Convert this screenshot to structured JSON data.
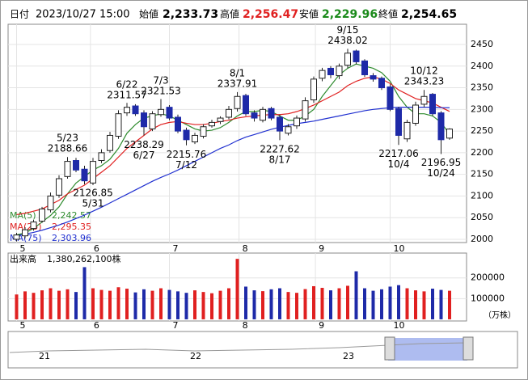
{
  "header": {
    "date_label": "日付",
    "date": "2023/10/27 15:00",
    "open_label": "始値",
    "open": "2,233.73",
    "high_label": "高値",
    "high": "2,256.47",
    "low_label": "安値",
    "low": "2,229.96",
    "close_label": "終値",
    "close": "2,254.65"
  },
  "chart_data": [
    {
      "type": "candlestick",
      "xlim": [
        -1,
        53
      ],
      "xticks": [
        {
          "value": 0,
          "label": "5"
        },
        {
          "value": 8.7,
          "label": "6"
        },
        {
          "value": 18,
          "label": "7"
        },
        {
          "value": 26.2,
          "label": "8"
        },
        {
          "value": 35.2,
          "label": "9"
        },
        {
          "value": 44,
          "label": "10"
        }
      ],
      "ylim": [
        1992.5,
        2496.7
      ],
      "yticks": [
        2000,
        2050,
        2100,
        2150,
        2200,
        2250,
        2300,
        2350,
        2400,
        2450
      ],
      "grid": true,
      "up_color": "#ffffff",
      "down_color": "#1e2aa8",
      "open": [
        2000,
        2008,
        2025,
        2042,
        2068,
        2102,
        2145,
        2182,
        2162,
        2130,
        2182,
        2205,
        2238,
        2292,
        2308,
        2292,
        2255,
        2288,
        2305,
        2282,
        2252,
        2225,
        2238,
        2262,
        2272,
        2282,
        2302,
        2332,
        2292,
        2275,
        2302,
        2282,
        2245,
        2262,
        2278,
        2322,
        2372,
        2395,
        2378,
        2402,
        2435,
        2412,
        2378,
        2372,
        2352,
        2302,
        2232,
        2268,
        2312,
        2335,
        2292,
        2233.73
      ],
      "high": [
        2015,
        2028,
        2045,
        2075,
        2108,
        2148,
        2190,
        2188,
        2170,
        2188,
        2208,
        2248,
        2298,
        2315,
        2312,
        2298,
        2296,
        2324,
        2310,
        2288,
        2258,
        2246,
        2266,
        2276,
        2284,
        2308,
        2340,
        2336,
        2298,
        2306,
        2306,
        2288,
        2266,
        2286,
        2328,
        2376,
        2396,
        2400,
        2406,
        2440,
        2438,
        2416,
        2384,
        2376,
        2358,
        2306,
        2276,
        2318,
        2345,
        2338,
        2296,
        2256.47
      ],
      "low": [
        1995,
        2002,
        2020,
        2038,
        2062,
        2096,
        2140,
        2155,
        2127,
        2125,
        2176,
        2200,
        2232,
        2285,
        2285,
        2240,
        2250,
        2283,
        2275,
        2245,
        2217,
        2220,
        2233,
        2258,
        2266,
        2277,
        2295,
        2285,
        2272,
        2270,
        2275,
        2229,
        2240,
        2255,
        2272,
        2315,
        2365,
        2372,
        2370,
        2395,
        2404,
        2375,
        2364,
        2345,
        2296,
        2218,
        2225,
        2262,
        2305,
        2285,
        2197,
        2229.96
      ],
      "close": [
        2010,
        2022,
        2040,
        2070,
        2100,
        2140,
        2180,
        2160,
        2135,
        2180,
        2200,
        2240,
        2290,
        2305,
        2290,
        2260,
        2290,
        2300,
        2280,
        2250,
        2230,
        2240,
        2260,
        2270,
        2280,
        2300,
        2330,
        2290,
        2280,
        2300,
        2280,
        2250,
        2260,
        2280,
        2320,
        2370,
        2390,
        2380,
        2400,
        2430,
        2410,
        2380,
        2370,
        2350,
        2300,
        2240,
        2270,
        2310,
        2330,
        2290,
        2230,
        2254.65
      ],
      "series": [
        {
          "name": "MA(5)",
          "last": "2,242.57",
          "color": "#2e8b2e",
          "values": [
            2010,
            2015,
            2025,
            2040,
            2055,
            2075,
            2105,
            2130,
            2145,
            2160,
            2170,
            2185,
            2210,
            2245,
            2265,
            2280,
            2285,
            2290,
            2285,
            2275,
            2265,
            2255,
            2250,
            2252,
            2258,
            2270,
            2285,
            2295,
            2295,
            2298,
            2295,
            2285,
            2275,
            2275,
            2285,
            2300,
            2330,
            2355,
            2380,
            2395,
            2405,
            2400,
            2395,
            2385,
            2365,
            2330,
            2305,
            2290,
            2290,
            2285,
            2270,
            2242.57
          ]
        },
        {
          "name": "MA(25)",
          "last": "2,295.35",
          "color": "#e02020",
          "values": [
            2057,
            2060,
            2065,
            2070,
            2080,
            2090,
            2105,
            2115,
            2125,
            2140,
            2155,
            2170,
            2190,
            2210,
            2225,
            2240,
            2255,
            2265,
            2270,
            2272,
            2268,
            2265,
            2265,
            2268,
            2272,
            2275,
            2280,
            2283,
            2285,
            2287,
            2288,
            2288,
            2290,
            2295,
            2302,
            2310,
            2320,
            2330,
            2340,
            2355,
            2365,
            2372,
            2375,
            2370,
            2360,
            2345,
            2335,
            2325,
            2320,
            2315,
            2305,
            2295.35
          ]
        },
        {
          "name": "MA(75)",
          "last": "2,303.96",
          "color": "#2030d0",
          "values": [
            2008,
            2012,
            2016,
            2021,
            2027,
            2033,
            2040,
            2048,
            2056,
            2065,
            2074,
            2084,
            2094,
            2104,
            2114,
            2124,
            2134,
            2143,
            2151,
            2160,
            2170,
            2180,
            2190,
            2200,
            2210,
            2218,
            2228,
            2236,
            2242,
            2248,
            2254,
            2259,
            2263,
            2267,
            2270,
            2273,
            2277,
            2281,
            2285,
            2289,
            2293,
            2297,
            2300,
            2302,
            2304,
            2305,
            2305,
            2305,
            2305,
            2305,
            2304,
            2303.96
          ]
        }
      ],
      "annotations": [
        {
          "date": "5/23",
          "value": 2188.66,
          "at": 6,
          "position": "above"
        },
        {
          "date": "5/31",
          "value": 2126.85,
          "at": 9,
          "position": "below"
        },
        {
          "date": "6/22",
          "value": 2311.57,
          "at": 13,
          "position": "above"
        },
        {
          "date": "6/27",
          "value": 2238.29,
          "at": 15,
          "position": "below"
        },
        {
          "date": "7/3",
          "value": 2321.53,
          "at": 17,
          "position": "above"
        },
        {
          "date": "7/12",
          "value": 2215.76,
          "at": 20,
          "position": "below"
        },
        {
          "date": "8/1",
          "value": 2337.91,
          "at": 26,
          "position": "above"
        },
        {
          "date": "8/17",
          "value": 2227.62,
          "at": 31,
          "position": "below"
        },
        {
          "date": "9/15",
          "value": 2438.02,
          "at": 39,
          "position": "above"
        },
        {
          "date": "10/4",
          "value": 2217.06,
          "at": 45,
          "position": "below"
        },
        {
          "date": "10/12",
          "value": 2343.23,
          "at": 48,
          "position": "above"
        },
        {
          "date": "10/24",
          "value": 2196.95,
          "at": 50,
          "position": "below"
        }
      ]
    },
    {
      "type": "volume",
      "title": "出来高",
      "total": "1,380,262,100株",
      "unit": "（万株）",
      "xlim": [
        -1,
        53
      ],
      "xticks": [
        {
          "value": 0,
          "label": "5"
        },
        {
          "value": 8.7,
          "label": "6"
        },
        {
          "value": 18,
          "label": "7"
        },
        {
          "value": 26.2,
          "label": "8"
        },
        {
          "value": 35.2,
          "label": "9"
        },
        {
          "value": 44,
          "label": "10"
        }
      ],
      "ylim": [
        -8000,
        320000
      ],
      "yticks": [
        100000,
        200000
      ],
      "grid": true,
      "up_color": "#e02020",
      "down_color": "#1e2aa8",
      "values": [
        120000,
        135000,
        128000,
        140000,
        150000,
        138000,
        145000,
        132000,
        252000,
        150000,
        142000,
        138000,
        155000,
        148000,
        130000,
        145000,
        138000,
        150000,
        142000,
        135000,
        128000,
        140000,
        132000,
        126000,
        138000,
        150000,
        292000,
        158000,
        140000,
        136000,
        145000,
        150000,
        132000,
        128000,
        146000,
        160000,
        152000,
        140000,
        150000,
        162000,
        232000,
        150000,
        138000,
        145000,
        158000,
        165000,
        150000,
        140000,
        135000,
        148000,
        142000,
        138026
      ]
    }
  ],
  "navigator": {
    "labels": [
      "21",
      "22",
      "23"
    ]
  }
}
